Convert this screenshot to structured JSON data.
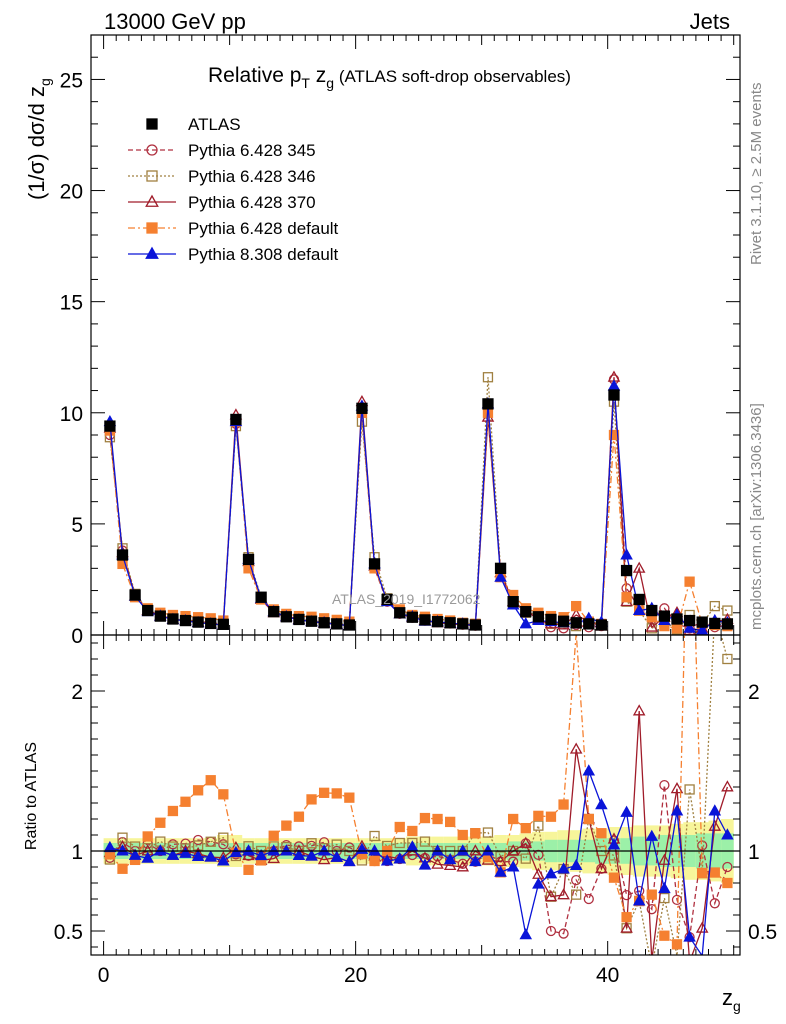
{
  "header": {
    "left": "13000 GeV pp",
    "right": "Jets"
  },
  "side": {
    "top": "Rivet 3.1.10, ≥ 2.5M events",
    "bottom": "mcplots.cern.ch [arXiv:1306.3436]"
  },
  "watermark": "ATLAS_2019_I1772062",
  "chart_data": {
    "type": "line",
    "title_parts": {
      "a": "Relative p",
      "sub": "T",
      "b": " z",
      "sub2": "g",
      "c": " (ATLAS soft-drop observables)"
    },
    "ylabel_main": "(1/σ) dσ/d z",
    "ylabel_main_sub": "g",
    "ylabel_ratio": "Ratio to ATLAS",
    "xlabel": "z",
    "xlabel_sub": "g",
    "xlim": [
      -1,
      50.5
    ],
    "ylim_main": [
      0,
      27
    ],
    "ylim_ratio": [
      0.35,
      2.35
    ],
    "yticks_main": [
      0,
      5,
      10,
      15,
      20,
      25
    ],
    "yticks_ratio": [
      0.5,
      1,
      2
    ],
    "xticks": [
      0,
      20,
      40
    ],
    "legend_position": "top-left",
    "x": [
      0.5,
      1.5,
      2.5,
      3.5,
      4.5,
      5.5,
      6.5,
      7.5,
      8.5,
      9.5,
      10.5,
      11.5,
      12.5,
      13.5,
      14.5,
      15.5,
      16.5,
      17.5,
      18.5,
      19.5,
      20.5,
      21.5,
      22.5,
      23.5,
      24.5,
      25.5,
      26.5,
      27.5,
      28.5,
      29.5,
      30.5,
      31.5,
      32.5,
      33.5,
      34.5,
      35.5,
      36.5,
      37.5,
      38.5,
      39.5,
      40.5,
      41.5,
      42.5,
      43.5,
      44.5,
      45.5,
      46.5,
      47.5,
      48.5,
      49.5
    ],
    "series": [
      {
        "name": "ATLAS",
        "color": "#000000",
        "marker": "filled-square",
        "dash": "",
        "values": [
          9.4,
          3.6,
          1.8,
          1.1,
          0.85,
          0.72,
          0.65,
          0.58,
          0.52,
          0.48,
          9.7,
          3.4,
          1.7,
          1.05,
          0.82,
          0.7,
          0.62,
          0.55,
          0.5,
          0.45,
          10.2,
          3.2,
          1.6,
          1.0,
          0.8,
          0.68,
          0.6,
          0.55,
          0.5,
          0.45,
          10.4,
          3.0,
          1.5,
          1.05,
          0.82,
          0.7,
          0.62,
          0.55,
          0.5,
          0.45,
          10.8,
          2.9,
          1.6,
          1.1,
          0.85,
          0.72,
          0.65,
          0.58,
          0.52,
          0.5
        ]
      },
      {
        "name": "Pythia 6.428 345",
        "color": "#b03040",
        "marker": "open-circle",
        "dash": "5,3",
        "values": [
          9.0,
          3.8,
          1.8,
          1.15,
          0.85,
          0.75,
          0.68,
          0.62,
          0.55,
          0.5,
          9.5,
          3.3,
          1.65,
          1.05,
          0.85,
          0.72,
          0.64,
          0.58,
          0.5,
          0.46,
          10.0,
          3.0,
          1.5,
          0.95,
          0.78,
          0.65,
          0.58,
          0.52,
          0.46,
          0.42,
          10.2,
          2.8,
          1.4,
          1.1,
          0.8,
          0.35,
          0.3,
          0.45,
          0.35,
          0.4,
          11.5,
          2.1,
          1.2,
          0.7,
          1.2,
          0.5,
          0.3,
          0.6,
          0.35,
          0.45
        ]
      },
      {
        "name": "Pythia 6.428 346",
        "color": "#a08040",
        "marker": "open-square",
        "dash": "2,2",
        "values": [
          8.9,
          3.9,
          1.85,
          1.12,
          0.9,
          0.74,
          0.66,
          0.6,
          0.55,
          0.52,
          9.4,
          3.5,
          1.7,
          1.08,
          0.84,
          0.7,
          0.65,
          0.56,
          0.52,
          0.45,
          9.6,
          3.5,
          1.65,
          1.05,
          0.84,
          0.72,
          0.6,
          0.55,
          0.5,
          0.5,
          11.6,
          2.9,
          1.5,
          1.0,
          0.95,
          0.5,
          0.55,
          0.4,
          0.6,
          0.45,
          10.5,
          1.5,
          1.1,
          0.3,
          0.6,
          0.25,
          0.9,
          0.5,
          1.3,
          1.1
        ]
      },
      {
        "name": "Pythia 6.428 370",
        "color": "#a01c2a",
        "marker": "open-triangle",
        "dash": "",
        "values": [
          9.3,
          3.7,
          1.75,
          1.1,
          0.85,
          0.7,
          0.65,
          0.57,
          0.5,
          0.46,
          9.9,
          3.3,
          1.6,
          1.0,
          0.82,
          0.7,
          0.6,
          0.52,
          0.48,
          0.42,
          10.5,
          3.1,
          1.55,
          0.95,
          0.8,
          0.65,
          0.55,
          0.5,
          0.45,
          0.45,
          9.8,
          2.8,
          1.5,
          1.1,
          0.7,
          0.5,
          0.45,
          0.9,
          0.6,
          0.4,
          11.6,
          1.5,
          3.0,
          0.35,
          0.8,
          1.0,
          0.2,
          0.3,
          0.6,
          0.7
        ]
      },
      {
        "name": "Pythia 6.428 default",
        "color": "#f58030",
        "marker": "filled-square",
        "dash": "7,3,2,3",
        "values": [
          9.2,
          3.2,
          1.7,
          1.2,
          1.0,
          0.9,
          0.85,
          0.8,
          0.75,
          0.65,
          9.6,
          3.0,
          1.6,
          1.15,
          0.95,
          0.85,
          0.82,
          0.75,
          0.68,
          0.6,
          10.0,
          3.0,
          1.6,
          1.15,
          0.9,
          0.82,
          0.72,
          0.65,
          0.55,
          0.5,
          10.0,
          2.6,
          1.8,
          1.2,
          1.0,
          0.85,
          0.8,
          1.3,
          0.6,
          0.5,
          9.0,
          1.7,
          1.1,
          0.8,
          0.4,
          0.3,
          2.4,
          0.5,
          0.45,
          0.4
        ]
      },
      {
        "name": "Pythia 8.308 default",
        "color": "#0a14d8",
        "marker": "filled-triangle",
        "dash": "",
        "values": [
          9.6,
          3.6,
          1.75,
          1.05,
          0.85,
          0.7,
          0.64,
          0.56,
          0.5,
          0.45,
          9.6,
          3.4,
          1.65,
          1.05,
          0.82,
          0.68,
          0.6,
          0.55,
          0.48,
          0.42,
          10.3,
          3.2,
          1.5,
          0.95,
          0.82,
          0.62,
          0.6,
          0.52,
          0.5,
          0.42,
          10.4,
          2.6,
          1.35,
          0.5,
          0.65,
          0.6,
          0.55,
          0.5,
          0.75,
          0.58,
          11.2,
          3.6,
          1.1,
          1.2,
          0.65,
          0.9,
          0.3,
          0.2,
          0.65,
          0.55
        ]
      }
    ],
    "ratio": {
      "reference": 1,
      "band_inner": [
        0.05,
        0.05,
        0.05,
        0.05,
        0.05,
        0.05,
        0.05,
        0.05,
        0.05,
        0.05,
        0.05,
        0.05,
        0.05,
        0.05,
        0.05,
        0.05,
        0.05,
        0.05,
        0.05,
        0.05,
        0.05,
        0.05,
        0.05,
        0.05,
        0.05,
        0.05,
        0.05,
        0.05,
        0.05,
        0.05,
        0.05,
        0.05,
        0.06,
        0.06,
        0.06,
        0.07,
        0.07,
        0.07,
        0.07,
        0.08,
        0.08,
        0.08,
        0.09,
        0.09,
        0.1,
        0.1,
        0.1,
        0.11,
        0.11,
        0.11
      ],
      "band_outer": [
        0.08,
        0.08,
        0.08,
        0.08,
        0.08,
        0.08,
        0.08,
        0.08,
        0.08,
        0.1,
        0.1,
        0.08,
        0.08,
        0.08,
        0.08,
        0.08,
        0.08,
        0.08,
        0.08,
        0.08,
        0.08,
        0.08,
        0.08,
        0.08,
        0.09,
        0.09,
        0.09,
        0.09,
        0.09,
        0.09,
        0.09,
        0.1,
        0.1,
        0.11,
        0.12,
        0.12,
        0.13,
        0.13,
        0.14,
        0.14,
        0.15,
        0.15,
        0.16,
        0.16,
        0.16,
        0.17,
        0.18,
        0.18,
        0.19,
        0.2
      ]
    }
  }
}
